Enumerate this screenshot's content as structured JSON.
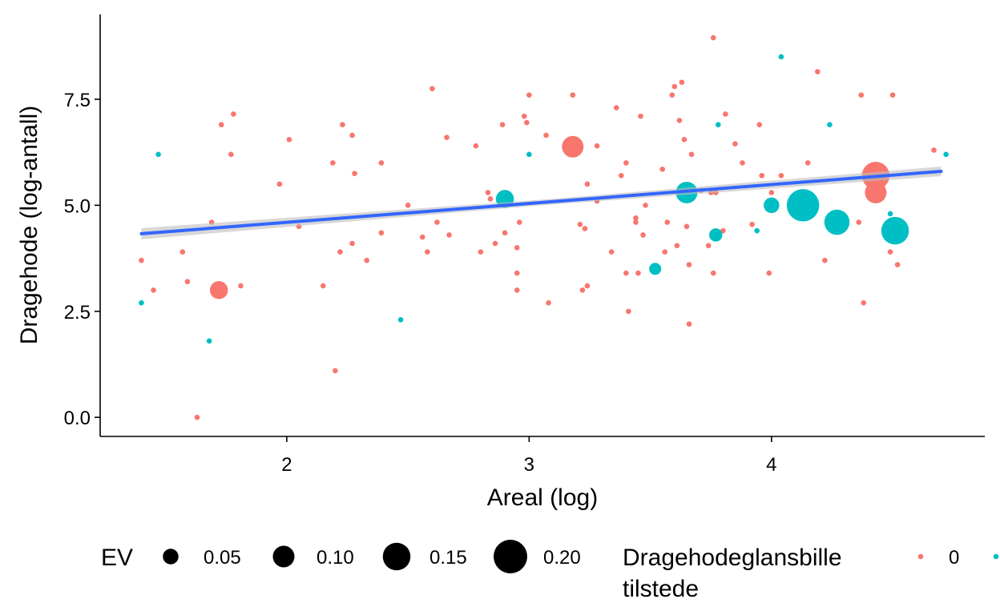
{
  "chart_data": {
    "type": "scatter",
    "xlabel": "Areal (log)",
    "ylabel": "Dragehode (log-antall)",
    "x_ticks": [
      "2",
      "3",
      "4"
    ],
    "y_ticks": [
      "0.0",
      "2.5",
      "5.0",
      "7.5"
    ],
    "xlim": [
      1.23,
      4.88
    ],
    "ylim": [
      -0.45,
      9.5
    ],
    "grid": false,
    "legend_position": "bottom",
    "colors": {
      "absent": "#F8766D",
      "present": "#00BFC4",
      "trend": "#3366FF",
      "ribbon": "#BEBEBE"
    },
    "trend_line": {
      "x": [
        1.4,
        4.7
      ],
      "y": [
        4.33,
        5.8
      ]
    },
    "legend": {
      "size": {
        "title": "EV",
        "labels": [
          "0.05",
          "0.10",
          "0.15",
          "0.20"
        ],
        "values": [
          0.05,
          0.1,
          0.15,
          0.2
        ]
      },
      "color": {
        "title_line1": "Dragehodeglansbille",
        "title_line2": "tilstede",
        "labels": [
          "0",
          ""
        ]
      }
    },
    "series": [
      {
        "name": "0",
        "points": [
          [
            1.4,
            3.7,
            0
          ],
          [
            1.45,
            3.0,
            0
          ],
          [
            1.57,
            3.9,
            0
          ],
          [
            1.59,
            3.2,
            0
          ],
          [
            1.63,
            0.0,
            0
          ],
          [
            1.69,
            4.6,
            0
          ],
          [
            1.72,
            3.0,
            0.07
          ],
          [
            1.73,
            6.9,
            0
          ],
          [
            1.77,
            6.2,
            0
          ],
          [
            1.78,
            7.15,
            0
          ],
          [
            1.81,
            3.1,
            0
          ],
          [
            1.97,
            5.5,
            0
          ],
          [
            2.01,
            6.55,
            0
          ],
          [
            2.05,
            4.5,
            0
          ],
          [
            2.15,
            3.1,
            0
          ],
          [
            2.19,
            6.0,
            0
          ],
          [
            2.2,
            1.1,
            0
          ],
          [
            2.22,
            3.9,
            0
          ],
          [
            2.23,
            6.9,
            0
          ],
          [
            2.27,
            4.1,
            0
          ],
          [
            2.27,
            6.65,
            0
          ],
          [
            2.28,
            5.75,
            0
          ],
          [
            2.33,
            3.7,
            0
          ],
          [
            2.39,
            6.0,
            0
          ],
          [
            2.39,
            4.35,
            0
          ],
          [
            2.5,
            5.0,
            0
          ],
          [
            2.56,
            4.25,
            0
          ],
          [
            2.58,
            3.9,
            0
          ],
          [
            2.6,
            7.75,
            0
          ],
          [
            2.62,
            4.6,
            0
          ],
          [
            2.66,
            6.6,
            0
          ],
          [
            2.67,
            4.3,
            0
          ],
          [
            2.78,
            6.4,
            0
          ],
          [
            2.8,
            3.9,
            0
          ],
          [
            2.83,
            5.3,
            0
          ],
          [
            2.84,
            5.15,
            0
          ],
          [
            2.86,
            4.1,
            0
          ],
          [
            2.89,
            6.9,
            0
          ],
          [
            2.9,
            4.35,
            0
          ],
          [
            2.95,
            3.4,
            0
          ],
          [
            2.95,
            3.0,
            0
          ],
          [
            2.95,
            4.0,
            0
          ],
          [
            2.96,
            4.6,
            0
          ],
          [
            2.98,
            7.1,
            0
          ],
          [
            2.99,
            6.95,
            0
          ],
          [
            3.0,
            7.6,
            0
          ],
          [
            3.07,
            6.65,
            0
          ],
          [
            3.08,
            2.7,
            0
          ],
          [
            3.18,
            6.38,
            0.1
          ],
          [
            3.18,
            7.6,
            0
          ],
          [
            3.21,
            4.55,
            0
          ],
          [
            3.22,
            3.0,
            0
          ],
          [
            3.23,
            4.45,
            0
          ],
          [
            3.24,
            3.1,
            0
          ],
          [
            3.24,
            5.5,
            0
          ],
          [
            3.28,
            5.1,
            0
          ],
          [
            3.28,
            6.4,
            0
          ],
          [
            3.34,
            3.9,
            0
          ],
          [
            3.36,
            7.3,
            0
          ],
          [
            3.38,
            5.7,
            0
          ],
          [
            3.4,
            3.4,
            0
          ],
          [
            3.4,
            6.0,
            0
          ],
          [
            3.41,
            2.5,
            0
          ],
          [
            3.44,
            4.7,
            0
          ],
          [
            3.44,
            4.6,
            0
          ],
          [
            3.45,
            3.4,
            0
          ],
          [
            3.46,
            7.1,
            0
          ],
          [
            3.47,
            4.3,
            0
          ],
          [
            3.48,
            5.0,
            0
          ],
          [
            3.55,
            5.85,
            0
          ],
          [
            3.56,
            3.9,
            0
          ],
          [
            3.57,
            4.6,
            0
          ],
          [
            3.59,
            7.6,
            0
          ],
          [
            3.6,
            7.8,
            0
          ],
          [
            3.61,
            4.05,
            0
          ],
          [
            3.62,
            7.0,
            0
          ],
          [
            3.63,
            7.9,
            0
          ],
          [
            3.64,
            6.55,
            0
          ],
          [
            3.65,
            4.5,
            0
          ],
          [
            3.66,
            3.6,
            0
          ],
          [
            3.66,
            2.2,
            0
          ],
          [
            3.67,
            6.2,
            0
          ],
          [
            3.71,
            5.35,
            0
          ],
          [
            3.74,
            4.05,
            0
          ],
          [
            3.75,
            5.3,
            0
          ],
          [
            3.76,
            3.4,
            0
          ],
          [
            3.77,
            5.3,
            0
          ],
          [
            3.76,
            8.95,
            0
          ],
          [
            3.8,
            4.4,
            0
          ],
          [
            3.81,
            7.15,
            0
          ],
          [
            3.85,
            6.45,
            0
          ],
          [
            3.88,
            6.0,
            0
          ],
          [
            3.92,
            4.55,
            0
          ],
          [
            3.95,
            6.9,
            0
          ],
          [
            3.96,
            5.7,
            0
          ],
          [
            3.99,
            3.4,
            0
          ],
          [
            4.0,
            5.3,
            0
          ],
          [
            4.04,
            5.7,
            0
          ],
          [
            4.15,
            6.0,
            0
          ],
          [
            4.19,
            8.15,
            0
          ],
          [
            4.22,
            3.7,
            0
          ],
          [
            4.36,
            4.6,
            0
          ],
          [
            4.37,
            7.6,
            0
          ],
          [
            4.38,
            2.7,
            0
          ],
          [
            4.43,
            5.7,
            0.15
          ],
          [
            4.43,
            5.3,
            0.1
          ],
          [
            4.49,
            3.9,
            0
          ],
          [
            4.5,
            7.6,
            0
          ],
          [
            4.52,
            3.6,
            0
          ],
          [
            4.67,
            6.3,
            0
          ]
        ]
      },
      {
        "name": "",
        "points": [
          [
            1.4,
            2.7,
            0
          ],
          [
            1.47,
            6.2,
            0
          ],
          [
            1.68,
            1.8,
            0
          ],
          [
            2.47,
            2.3,
            0
          ],
          [
            2.9,
            5.15,
            0.07
          ],
          [
            3.0,
            6.2,
            0
          ],
          [
            3.52,
            3.5,
            0.02
          ],
          [
            3.65,
            5.3,
            0.1
          ],
          [
            3.77,
            4.3,
            0.03
          ],
          [
            3.78,
            6.9,
            0
          ],
          [
            3.94,
            4.4,
            0
          ],
          [
            4.0,
            5.0,
            0.05
          ],
          [
            4.04,
            8.5,
            0
          ],
          [
            4.13,
            5.0,
            0.19
          ],
          [
            4.24,
            6.9,
            0
          ],
          [
            4.27,
            4.6,
            0.13
          ],
          [
            4.49,
            4.8,
            0
          ],
          [
            4.51,
            4.4,
            0.15
          ],
          [
            4.72,
            6.2,
            0
          ]
        ]
      }
    ]
  }
}
